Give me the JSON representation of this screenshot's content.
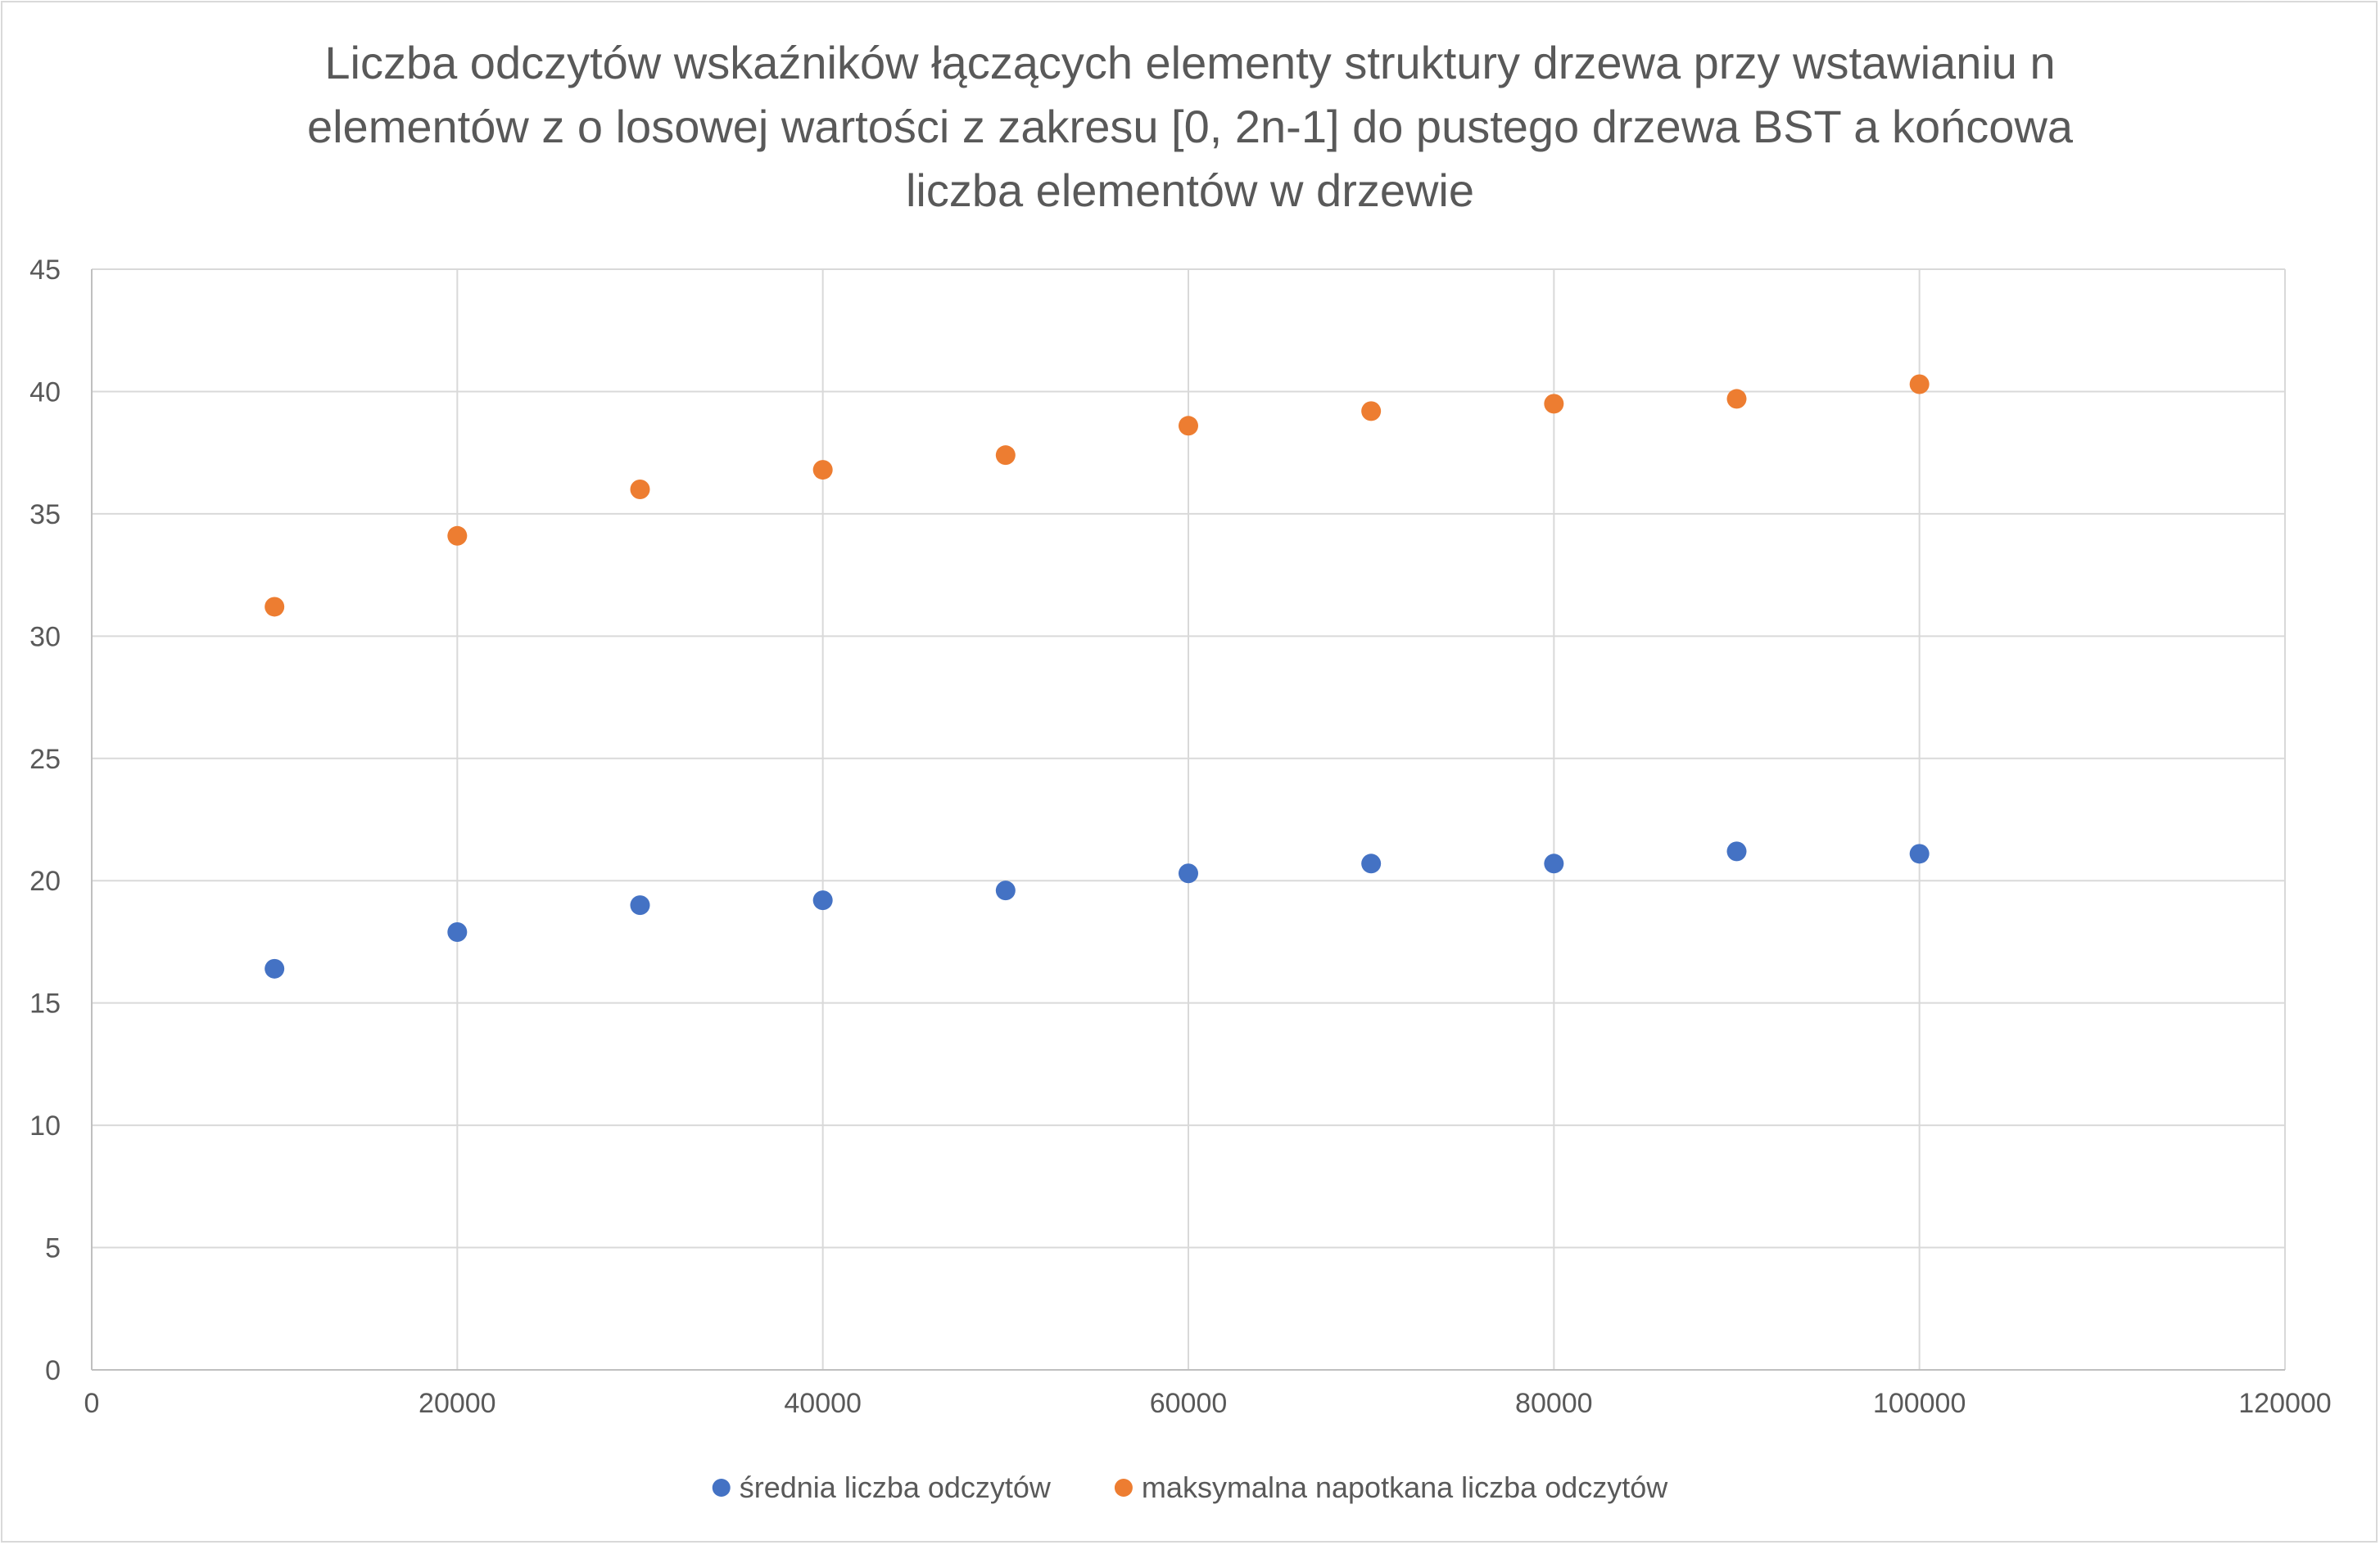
{
  "chart_data": {
    "type": "scatter",
    "title": "Liczba odczytów wskaźników łączących elementy struktury drzewa przy wstawianiu n elementów z o losowej wartości z zakresu [0, 2n-1] do pustego drzewa BST a końcowa liczba elementów w drzewie",
    "title_lines": [
      "Liczba odczytów wskaźników łączących elementy struktury drzewa przy wstawianiu n",
      "elementów z o losowej wartości z zakresu [0, 2n-1] do pustego drzewa BST a końcowa",
      "liczba elementów w drzewie"
    ],
    "xlabel": "",
    "ylabel": "",
    "xlim": [
      0,
      120000
    ],
    "ylim": [
      0,
      45
    ],
    "x_ticks": [
      "0",
      "20000",
      "40000",
      "60000",
      "80000",
      "100000",
      "120000"
    ],
    "y_ticks": [
      "0",
      "5",
      "10",
      "15",
      "20",
      "25",
      "30",
      "35",
      "40",
      "45"
    ],
    "grid": true,
    "legend_position": "bottom",
    "series": [
      {
        "name": "średnia liczba odczytów",
        "color": "#4472c4",
        "points": [
          {
            "x": 10000,
            "y": 16.4
          },
          {
            "x": 20000,
            "y": 17.9
          },
          {
            "x": 30000,
            "y": 19.0
          },
          {
            "x": 40000,
            "y": 19.2
          },
          {
            "x": 50000,
            "y": 19.6
          },
          {
            "x": 60000,
            "y": 20.3
          },
          {
            "x": 70000,
            "y": 20.7
          },
          {
            "x": 80000,
            "y": 20.7
          },
          {
            "x": 90000,
            "y": 21.2
          },
          {
            "x": 100000,
            "y": 21.1
          }
        ]
      },
      {
        "name": "maksymalna napotkana liczba odczytów",
        "color": "#ed7d31",
        "points": [
          {
            "x": 10000,
            "y": 31.2
          },
          {
            "x": 20000,
            "y": 34.1
          },
          {
            "x": 30000,
            "y": 36.0
          },
          {
            "x": 40000,
            "y": 36.8
          },
          {
            "x": 50000,
            "y": 37.4
          },
          {
            "x": 60000,
            "y": 38.6
          },
          {
            "x": 70000,
            "y": 39.2
          },
          {
            "x": 80000,
            "y": 39.5
          },
          {
            "x": 90000,
            "y": 39.7
          },
          {
            "x": 100000,
            "y": 40.3
          }
        ]
      }
    ]
  }
}
